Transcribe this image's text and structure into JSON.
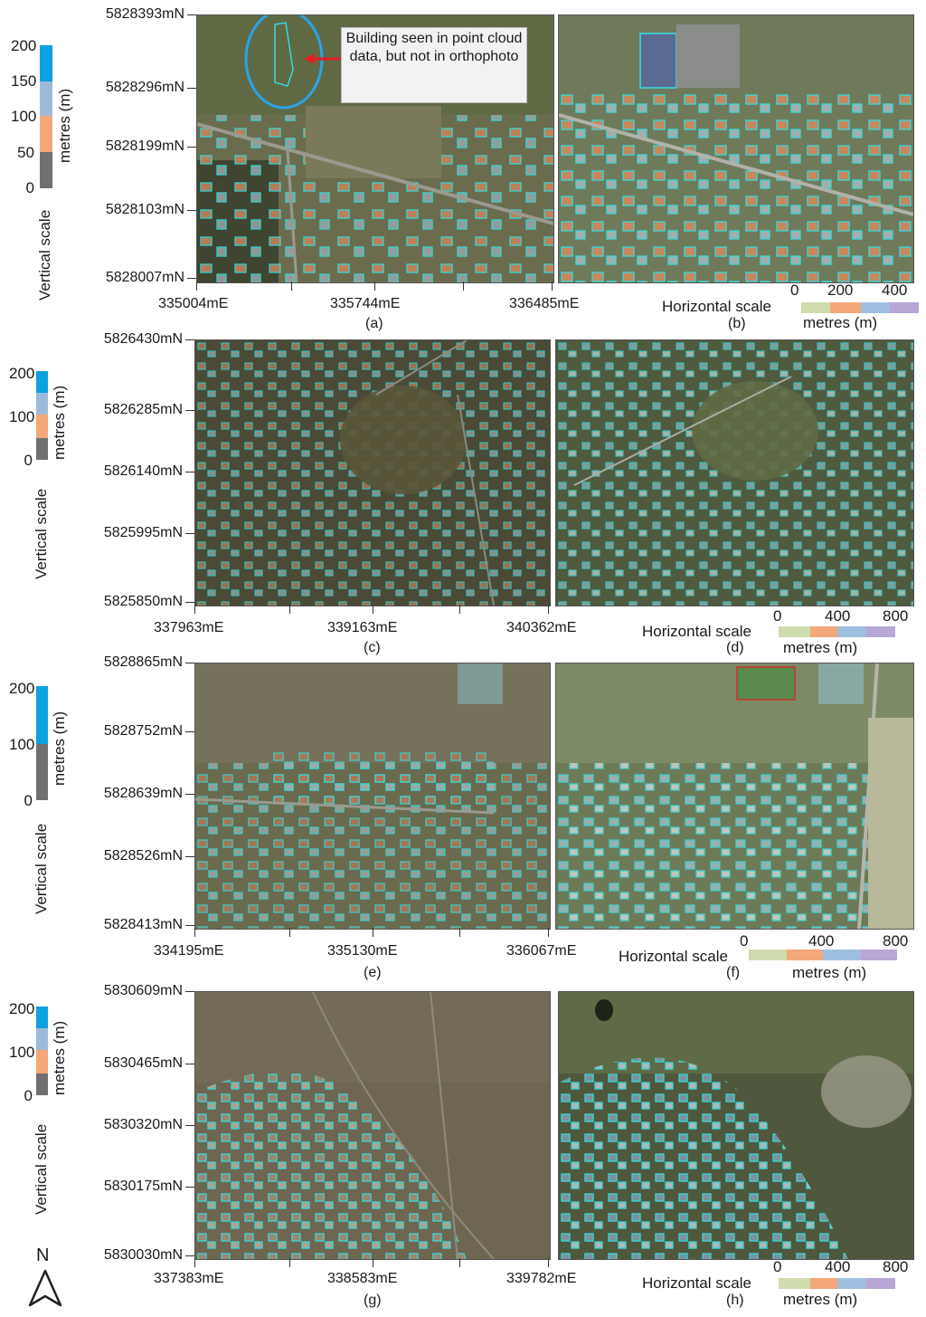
{
  "panels": [
    {
      "y_ticks": [
        "5828393mN",
        "5828296mN",
        "5828199mN",
        "5828103mN",
        "5828007mN"
      ],
      "x_ticks": [
        "335004mE",
        "335744mE",
        "336485mE"
      ],
      "left_label": "(a)",
      "right_label": "(b)",
      "vertical_scale": {
        "title": "Vertical scale",
        "unit": "metres (m)",
        "ticks": [
          "200",
          "150",
          "100",
          "50",
          "0"
        ]
      },
      "horizontal_scale": {
        "title": "Horizontal scale",
        "unit": "metres (m)",
        "ticks": [
          "0",
          "200",
          "400"
        ]
      },
      "annotation": "Building seen in point cloud data, but not in orthophoto"
    },
    {
      "y_ticks": [
        "5826430mN",
        "5826285mN",
        "5826140mN",
        "5825995mN",
        "5825850mN"
      ],
      "x_ticks": [
        "337963mE",
        "339163mE",
        "340362mE"
      ],
      "left_label": "(c)",
      "right_label": "(d)",
      "vertical_scale": {
        "title": "Vertical scale",
        "unit": "metres (m)",
        "ticks": [
          "200",
          "100",
          "0"
        ]
      },
      "horizontal_scale": {
        "title": "Horizontal scale",
        "unit": "metres (m)",
        "ticks": [
          "0",
          "400",
          "800"
        ]
      }
    },
    {
      "y_ticks": [
        "5828865mN",
        "5828752mN",
        "5828639mN",
        "5828526mN",
        "5828413mN"
      ],
      "x_ticks": [
        "334195mE",
        "335130mE",
        "336067mE"
      ],
      "left_label": "(e)",
      "right_label": "(f)",
      "vertical_scale": {
        "title": "Vertical scale",
        "unit": "metres (m)",
        "ticks": [
          "200",
          "100",
          "0"
        ]
      },
      "horizontal_scale": {
        "title": "Horizontal scale",
        "unit": "metres (m)",
        "ticks": [
          "0",
          "400",
          "800"
        ]
      }
    },
    {
      "y_ticks": [
        "5830609mN",
        "5830465mN",
        "5830320mN",
        "5830175mN",
        "5830030mN"
      ],
      "x_ticks": [
        "337383mE",
        "338583mE",
        "339782mE"
      ],
      "left_label": "(g)",
      "right_label": "(h)",
      "vertical_scale": {
        "title": "Vertical scale",
        "unit": "metres (m)",
        "ticks": [
          "200",
          "100",
          "0"
        ]
      },
      "horizontal_scale": {
        "title": "Horizontal scale",
        "unit": "metres (m)",
        "ticks": [
          "0",
          "400",
          "800"
        ]
      }
    }
  ],
  "north_arrow": "N",
  "colors": {
    "outline": "#35e0e6",
    "callout_arrow": "#e02020",
    "circle": "#2aa3e8",
    "v_blue": "#0ea0df",
    "v_lightblue": "#9dbbd9",
    "v_orange": "#f3a77a",
    "v_gray": "#707070",
    "h_green": "#cfdcae",
    "h_orange": "#f3a77a",
    "h_blue": "#9fbfe0",
    "h_purple": "#b7a6d6"
  }
}
